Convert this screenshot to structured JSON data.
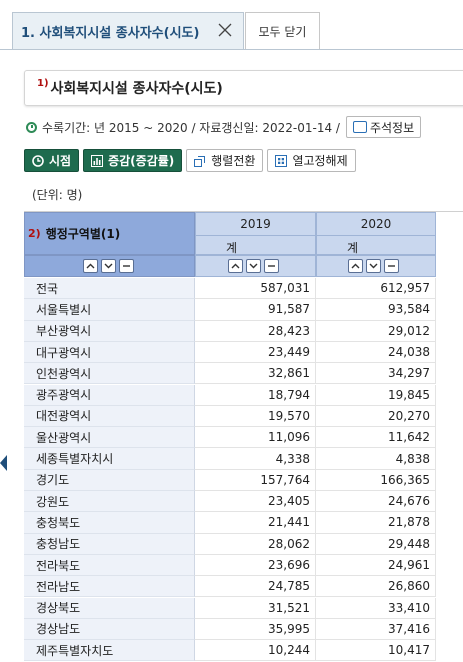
{
  "tabs": {
    "active_label": "1. 사회복지시설 종사자수(시도)",
    "close_all_label": "모두 닫기"
  },
  "table_title": {
    "number": "1)",
    "text": "사회복지시설 종사자수(시도)"
  },
  "meta": {
    "period_text": "수록기간: 년 2015 ~ 2020 / 자료갱신일: 2022-01-14 /",
    "notes_button": "주석정보"
  },
  "toolbar": {
    "time_button": "시점",
    "change_button": "증감(증감률)",
    "transpose_button": "행렬전환",
    "unfix_button": "열고정해제"
  },
  "unit_label": "(단위: 명)",
  "grid": {
    "row_header_number": "2)",
    "row_header_label": "행정구역별(1)",
    "columns": [
      {
        "year": "2019",
        "sub": "계"
      },
      {
        "year": "2020",
        "sub": "계"
      }
    ],
    "rows": [
      {
        "name": "전국",
        "v2019": "587,031",
        "v2020": "612,957"
      },
      {
        "name": "서울특별시",
        "v2019": "91,587",
        "v2020": "93,584"
      },
      {
        "name": "부산광역시",
        "v2019": "28,423",
        "v2020": "29,012"
      },
      {
        "name": "대구광역시",
        "v2019": "23,449",
        "v2020": "24,038"
      },
      {
        "name": "인천광역시",
        "v2019": "32,861",
        "v2020": "34,297"
      },
      {
        "name": "광주광역시",
        "v2019": "18,794",
        "v2020": "19,845"
      },
      {
        "name": "대전광역시",
        "v2019": "19,570",
        "v2020": "20,270"
      },
      {
        "name": "울산광역시",
        "v2019": "11,096",
        "v2020": "11,642"
      },
      {
        "name": "세종특별자치시",
        "v2019": "4,338",
        "v2020": "4,838"
      },
      {
        "name": "경기도",
        "v2019": "157,764",
        "v2020": "166,365"
      },
      {
        "name": "강원도",
        "v2019": "23,405",
        "v2020": "24,676"
      },
      {
        "name": "충청북도",
        "v2019": "21,441",
        "v2020": "21,878"
      },
      {
        "name": "충청남도",
        "v2019": "28,062",
        "v2020": "29,448"
      },
      {
        "name": "전라북도",
        "v2019": "23,696",
        "v2020": "24,961"
      },
      {
        "name": "전라남도",
        "v2019": "24,785",
        "v2020": "26,860"
      },
      {
        "name": "경상북도",
        "v2019": "31,521",
        "v2020": "33,410"
      },
      {
        "name": "경상남도",
        "v2019": "35,995",
        "v2020": "37,416"
      },
      {
        "name": "제주특별자치도",
        "v2019": "10,244",
        "v2020": "10,417"
      }
    ]
  },
  "colors": {
    "accent": "#1e6b4e",
    "header_blue": "#8ea9db",
    "header_light": "#c9d7ee",
    "tab_text": "#1f4e7a"
  }
}
